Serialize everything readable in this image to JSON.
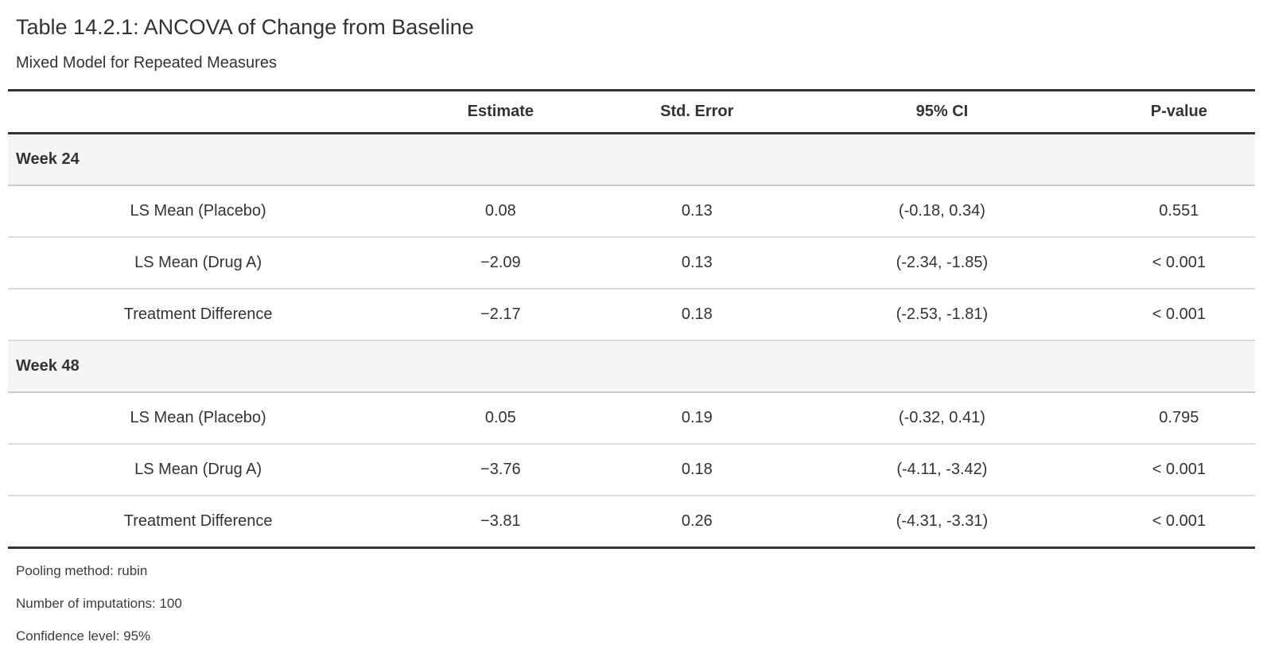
{
  "header": {
    "title": "Table 14.2.1: ANCOVA of Change from Baseline",
    "subtitle": "Mixed Model for Repeated Measures"
  },
  "table": {
    "columns": [
      "",
      "Estimate",
      "Std. Error",
      "95% CI",
      "P-value"
    ],
    "sections": [
      {
        "group": "Week 24",
        "rows": [
          {
            "label": "LS Mean (Placebo)",
            "estimate": "0.08",
            "std_error": "0.13",
            "ci": "(-0.18, 0.34)",
            "p_value": "0.551"
          },
          {
            "label": "LS Mean (Drug A)",
            "estimate": "−2.09",
            "std_error": "0.13",
            "ci": "(-2.34, -1.85)",
            "p_value": "< 0.001"
          },
          {
            "label": "Treatment Difference",
            "estimate": "−2.17",
            "std_error": "0.18",
            "ci": "(-2.53, -1.81)",
            "p_value": "< 0.001"
          }
        ]
      },
      {
        "group": "Week 48",
        "rows": [
          {
            "label": "LS Mean (Placebo)",
            "estimate": "0.05",
            "std_error": "0.19",
            "ci": "(-0.32, 0.41)",
            "p_value": "0.795"
          },
          {
            "label": "LS Mean (Drug A)",
            "estimate": "−3.76",
            "std_error": "0.18",
            "ci": "(-4.11, -3.42)",
            "p_value": "< 0.001"
          },
          {
            "label": "Treatment Difference",
            "estimate": "−3.81",
            "std_error": "0.26",
            "ci": "(-4.31, -3.31)",
            "p_value": "< 0.001"
          }
        ]
      }
    ]
  },
  "footnotes": [
    "Pooling method: rubin",
    "Number of imputations: 100",
    "Confidence level: 95%"
  ],
  "colors": {
    "text": "#333333",
    "heavy_rule": "#333333",
    "row_separator": "#dcdcdc",
    "group_separator": "#c9c9c9",
    "group_row_background": "#f5f5f5",
    "page_background": "#ffffff"
  }
}
